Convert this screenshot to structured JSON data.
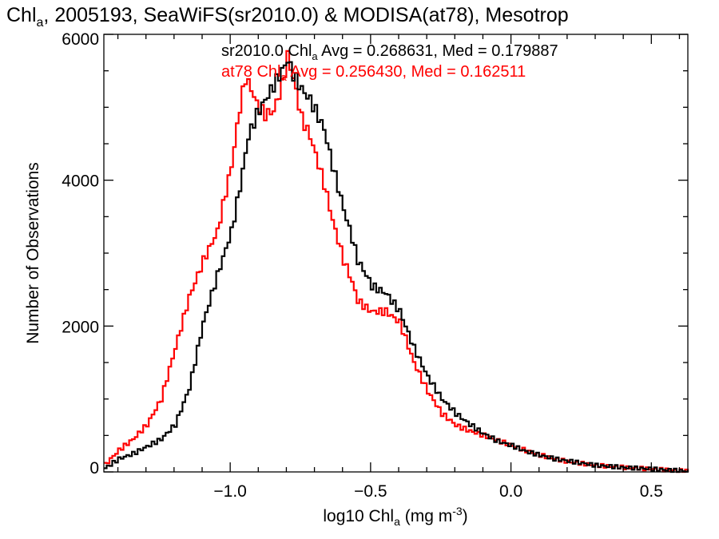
{
  "chart_data": {
    "type": "line",
    "title": "Chl_a, 2005193, SeaWiFS(sr2010.0) & MODISA(at78), Mesotrop",
    "title_parts": {
      "pre": "Chl",
      "sub": "a",
      "post": ", 2005193, SeaWiFS(sr2010.0) & MODISA(at78), Mesotrop"
    },
    "xlabel": "log10 Chl_a (mg m^-3)",
    "xlabel_parts": {
      "pre": "log10 Chl",
      "sub": "a",
      "mid": " (mg m",
      "sup": "-3",
      "post": ")"
    },
    "ylabel": "Number of Observations",
    "xlim": [
      -1.45,
      0.63
    ],
    "ylim": [
      0,
      6000
    ],
    "x_ticks": [
      -1.0,
      -0.5,
      0.0,
      0.5
    ],
    "x_tick_labels": [
      "−1.0",
      "−0.5",
      "0.0",
      "0.5"
    ],
    "y_ticks": [
      0,
      2000,
      4000,
      6000
    ],
    "y_tick_labels": [
      "0",
      "2000",
      "4000",
      "6000"
    ],
    "grid": false,
    "legend": [
      {
        "pre": "sr2010.0 Chl",
        "sub": "a",
        "post": " Avg = 0.268631, Med = 0.179887",
        "color": "#000000"
      },
      {
        "pre": "at78 Chl",
        "sub": "a",
        "post": " Avg = 0.256430, Med = 0.162511",
        "color": "#ff0000"
      }
    ],
    "legend_position": "top-center",
    "series": [
      {
        "name": "sr2010.0",
        "color": "#000000",
        "x": [
          -1.45,
          -1.4,
          -1.35,
          -1.3,
          -1.25,
          -1.2,
          -1.15,
          -1.1,
          -1.05,
          -1.0,
          -0.97,
          -0.94,
          -0.91,
          -0.88,
          -0.85,
          -0.82,
          -0.8,
          -0.78,
          -0.75,
          -0.72,
          -0.7,
          -0.67,
          -0.64,
          -0.6,
          -0.57,
          -0.55,
          -0.52,
          -0.5,
          -0.45,
          -0.4,
          -0.37,
          -0.35,
          -0.3,
          -0.25,
          -0.2,
          -0.15,
          -0.1,
          -0.05,
          0.0,
          0.05,
          0.1,
          0.15,
          0.2,
          0.3,
          0.4,
          0.5,
          0.6,
          0.63
        ],
        "y": [
          50,
          180,
          250,
          350,
          450,
          650,
          1150,
          2050,
          2700,
          3300,
          3900,
          4600,
          4900,
          5100,
          5300,
          5500,
          5650,
          5450,
          5250,
          5100,
          4950,
          4700,
          4200,
          3600,
          3200,
          2900,
          2700,
          2550,
          2450,
          2200,
          1900,
          1700,
          1300,
          1000,
          800,
          650,
          520,
          420,
          360,
          280,
          230,
          180,
          150,
          90,
          60,
          40,
          15,
          10
        ]
      },
      {
        "name": "at78",
        "color": "#ff0000",
        "x": [
          -1.45,
          -1.4,
          -1.35,
          -1.3,
          -1.25,
          -1.2,
          -1.15,
          -1.1,
          -1.05,
          -1.0,
          -0.97,
          -0.95,
          -0.93,
          -0.91,
          -0.88,
          -0.85,
          -0.82,
          -0.8,
          -0.78,
          -0.75,
          -0.72,
          -0.7,
          -0.67,
          -0.64,
          -0.6,
          -0.57,
          -0.55,
          -0.52,
          -0.5,
          -0.45,
          -0.4,
          -0.35,
          -0.3,
          -0.25,
          -0.2,
          -0.15,
          -0.1,
          -0.05,
          0.0,
          0.05,
          0.1,
          0.15,
          0.2,
          0.3,
          0.4,
          0.5,
          0.6,
          0.63
        ],
        "y": [
          100,
          300,
          450,
          650,
          1000,
          1700,
          2400,
          2900,
          3300,
          4200,
          5000,
          5400,
          5250,
          5050,
          4900,
          4950,
          5300,
          5700,
          5400,
          4850,
          4600,
          4350,
          3950,
          3450,
          2900,
          2600,
          2350,
          2250,
          2200,
          2200,
          2050,
          1500,
          1100,
          800,
          640,
          560,
          500,
          430,
          360,
          290,
          230,
          180,
          140,
          90,
          60,
          40,
          15,
          10
        ]
      }
    ]
  }
}
